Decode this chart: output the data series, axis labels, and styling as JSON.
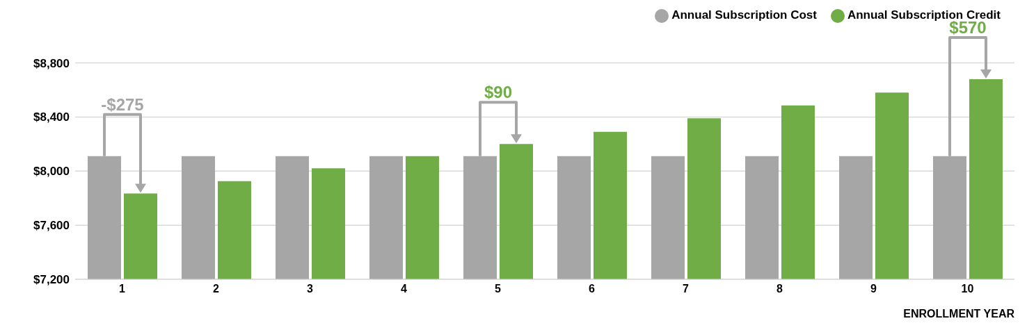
{
  "chart_data": {
    "type": "bar",
    "xlabel": "ENROLLMENT YEAR",
    "categories": [
      "1",
      "2",
      "3",
      "4",
      "5",
      "6",
      "7",
      "8",
      "9",
      "10"
    ],
    "series": [
      {
        "name": "Annual Subscription Cost",
        "color": "#a6a6a6",
        "values": [
          8110,
          8110,
          8110,
          8110,
          8110,
          8110,
          8110,
          8110,
          8110,
          8110
        ]
      },
      {
        "name": "Annual Subscription Credit",
        "color": "#70ad47",
        "values": [
          7835,
          7925,
          8020,
          8110,
          8200,
          8290,
          8390,
          8485,
          8580,
          8680
        ]
      }
    ],
    "ylim": [
      7200,
      8800
    ],
    "yticks": [
      {
        "value": 7200,
        "label": "$7,200"
      },
      {
        "value": 7600,
        "label": "$7,600"
      },
      {
        "value": 8000,
        "label": "$8,000"
      },
      {
        "value": 8400,
        "label": "$8,400"
      },
      {
        "value": 8800,
        "label": "$8,800"
      }
    ],
    "grid": "y",
    "legend": "top right",
    "annotations": [
      "-$275",
      "$90",
      "$570"
    ]
  }
}
